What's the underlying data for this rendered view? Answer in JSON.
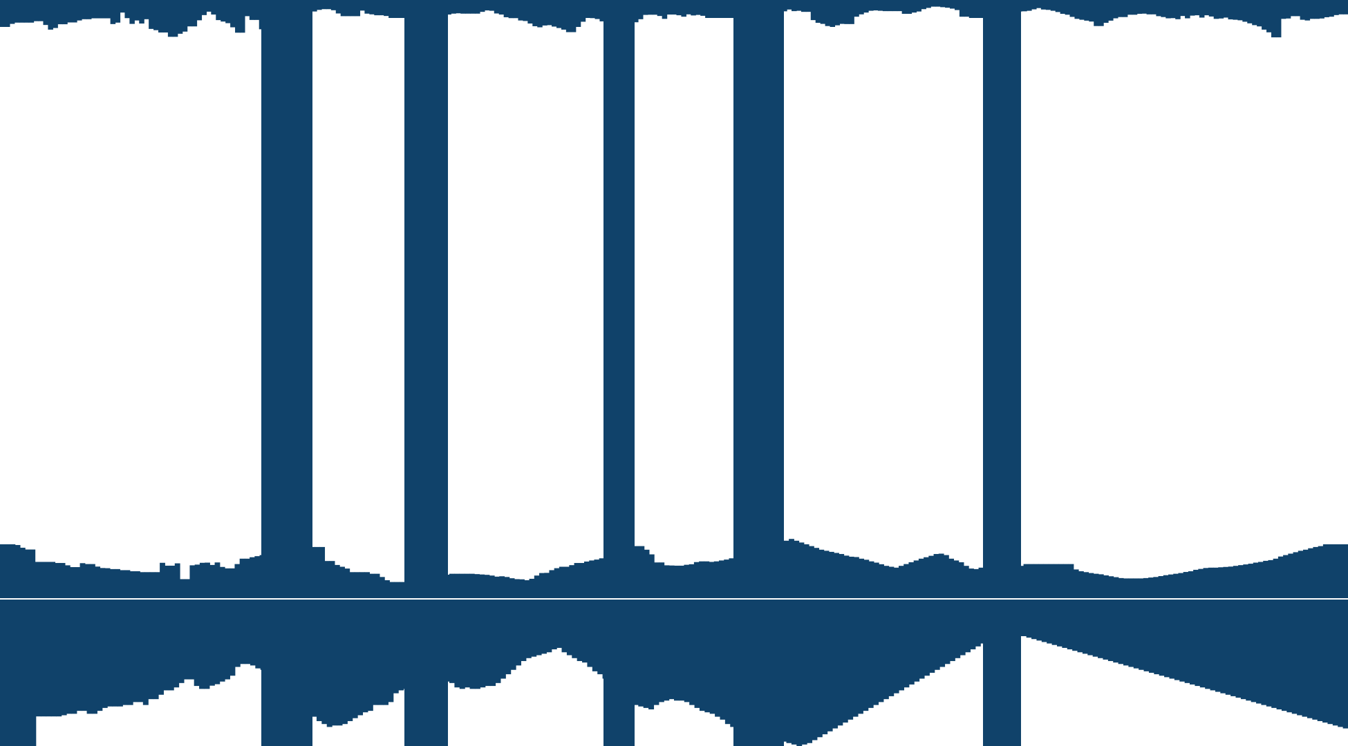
{
  "colors": {
    "fill": "#10426a",
    "background": "#ffffff",
    "divider": "#ffffff"
  },
  "chart_data": {
    "type": "bar",
    "title": "",
    "xlabel": "",
    "ylabel": "",
    "grid": false,
    "legend": "none",
    "panels": [
      {
        "name": "top",
        "orientation": "down",
        "ylim": [
          0,
          1
        ],
        "values": [
          0.15,
          0.15,
          0.133,
          0.126,
          0.126,
          0.126,
          0.126,
          0.118,
          0.118,
          0.139,
          0.165,
          0.156,
          0.135,
          0.135,
          0.125,
          0.125,
          0.114,
          0.107,
          0.107,
          0.102,
          0.102,
          0.102,
          0.102,
          0.134,
          0.126,
          0.07,
          0.101,
          0.133,
          0.114,
          0.131,
          0.107,
          0.161,
          0.168,
          0.181,
          0.181,
          0.205,
          0.205,
          0.188,
          0.176,
          0.147,
          0.147,
          0.113,
          0.084,
          0.065,
          0.081,
          0.112,
          0.12,
          0.129,
          0.152,
          0.182,
          0.182,
          0.09,
          0.111,
          0.111,
          0.163,
          0.081,
          0.081,
          0.078,
          0.076,
          0.076,
          0.076,
          0.09,
          0.09,
          0.076,
          0.07,
          0.064,
          0.055,
          0.051,
          0.051,
          0.057,
          0.075,
          0.09,
          0.09,
          0.09,
          0.09,
          0.059,
          0.076,
          0.08,
          0.085,
          0.085,
          0.089,
          0.1,
          0.1,
          0.1,
          0.1,
          0.1,
          0.1,
          0.1,
          0.1,
          0.1,
          0.1,
          0.088,
          0.085,
          0.081,
          0.076,
          0.074,
          0.076,
          0.076,
          0.076,
          0.076,
          0.066,
          0.058,
          0.06,
          0.075,
          0.081,
          0.096,
          0.101,
          0.101,
          0.114,
          0.117,
          0.131,
          0.146,
          0.152,
          0.142,
          0.14,
          0.148,
          0.156,
          0.165,
          0.179,
          0.179,
          0.15,
          0.121,
          0.1,
          0.101,
          0.106,
          0.119,
          0.124,
          0.124,
          0.124,
          0.124,
          0.124,
          0.124,
          0.124,
          0.107,
          0.083,
          0.082,
          0.082,
          0.089,
          0.105,
          0.081,
          0.081,
          0.085,
          0.093,
          0.08,
          0.086,
          0.083,
          0.088,
          0.1,
          0.1,
          0.1,
          0.1,
          0.1,
          0.1,
          0.1,
          0.1,
          0.1,
          0.1,
          0.1,
          0.1,
          0.1,
          0.1,
          0.1,
          0.1,
          0.063,
          0.053,
          0.062,
          0.06,
          0.066,
          0.066,
          0.112,
          0.127,
          0.133,
          0.145,
          0.15,
          0.141,
          0.133,
          0.134,
          0.134,
          0.093,
          0.08,
          0.07,
          0.06,
          0.058,
          0.06,
          0.062,
          0.062,
          0.062,
          0.062,
          0.077,
          0.077,
          0.07,
          0.064,
          0.051,
          0.044,
          0.037,
          0.037,
          0.04,
          0.043,
          0.048,
          0.056,
          0.093,
          0.093,
          0.1,
          0.1,
          0.1,
          0.1,
          0.1,
          0.1,
          0.1,
          0.1,
          0.1,
          0.1,
          0.064,
          0.063,
          0.06,
          0.052,
          0.045,
          0.053,
          0.055,
          0.06,
          0.067,
          0.077,
          0.082,
          0.094,
          0.105,
          0.11,
          0.115,
          0.12,
          0.145,
          0.145,
          0.127,
          0.115,
          0.102,
          0.095,
          0.095,
          0.082,
          0.082,
          0.077,
          0.076,
          0.08,
          0.08,
          0.09,
          0.095,
          0.102,
          0.101,
          0.107,
          0.089,
          0.102,
          0.087,
          0.085,
          0.098,
          0.085,
          0.092,
          0.105,
          0.103,
          0.098,
          0.108,
          0.11,
          0.113,
          0.121,
          0.13,
          0.14,
          0.147,
          0.165,
          0.18,
          0.208,
          0.208,
          0.105,
          0.103,
          0.09,
          0.09,
          0.11,
          0.114,
          0.105,
          0.105,
          0.103,
          0.096,
          0.093,
          0.084,
          0.08,
          0.08
        ]
      },
      {
        "name": "middle",
        "orientation": "up",
        "ylim": [
          0,
          1
        ],
        "values": [
          0.3,
          0.3,
          0.3,
          0.296,
          0.281,
          0.271,
          0.271,
          0.202,
          0.202,
          0.202,
          0.202,
          0.196,
          0.196,
          0.183,
          0.173,
          0.173,
          0.195,
          0.19,
          0.19,
          0.176,
          0.168,
          0.167,
          0.162,
          0.162,
          0.156,
          0.156,
          0.15,
          0.15,
          0.145,
          0.145,
          0.145,
          0.145,
          0.197,
          0.181,
          0.181,
          0.194,
          0.106,
          0.106,
          0.183,
          0.187,
          0.197,
          0.198,
          0.185,
          0.199,
          0.174,
          0.166,
          0.166,
          0.19,
          0.22,
          0.22,
          0.228,
          0.234,
          0.24,
          0.24,
          0.24,
          0.25,
          0.256,
          0.264,
          0.264,
          0.27,
          0.27,
          0.285,
          0.285,
          0.285,
          0.285,
          0.207,
          0.207,
          0.185,
          0.175,
          0.165,
          0.145,
          0.145,
          0.145,
          0.145,
          0.136,
          0.136,
          0.118,
          0.1,
          0.09,
          0.09,
          0.09,
          0.09,
          0.09,
          0.09,
          0.1,
          0.105,
          0.115,
          0.123,
          0.127,
          0.131,
          0.136,
          0.136,
          0.136,
          0.136,
          0.136,
          0.134,
          0.132,
          0.13,
          0.126,
          0.12,
          0.122,
          0.118,
          0.111,
          0.106,
          0.105,
          0.1,
          0.108,
          0.126,
          0.14,
          0.141,
          0.156,
          0.167,
          0.175,
          0.175,
          0.184,
          0.196,
          0.196,
          0.204,
          0.21,
          0.215,
          0.222,
          0.222,
          0.233,
          0.246,
          0.252,
          0.265,
          0.29,
          0.29,
          0.29,
          0.27,
          0.244,
          0.199,
          0.199,
          0.183,
          0.182,
          0.181,
          0.181,
          0.186,
          0.189,
          0.201,
          0.205,
          0.205,
          0.202,
          0.205,
          0.21,
          0.215,
          0.222,
          0.228,
          0.236,
          0.236,
          0.25,
          0.26,
          0.272,
          0.282,
          0.292,
          0.3,
          0.31,
          0.32,
          0.33,
          0.32,
          0.31,
          0.3,
          0.29,
          0.28,
          0.27,
          0.264,
          0.258,
          0.252,
          0.246,
          0.237,
          0.231,
          0.229,
          0.22,
          0.214,
          0.205,
          0.198,
          0.189,
          0.18,
          0.175,
          0.17,
          0.18,
          0.19,
          0.2,
          0.21,
          0.22,
          0.228,
          0.236,
          0.246,
          0.248,
          0.24,
          0.22,
          0.21,
          0.2,
          0.18,
          0.165,
          0.162,
          0.17,
          0.18,
          0.165,
          0.155,
          0.15,
          0.15,
          0.155,
          0.175,
          0.18,
          0.19,
          0.19,
          0.19,
          0.19,
          0.19,
          0.19,
          0.19,
          0.19,
          0.19,
          0.19,
          0.16,
          0.15,
          0.145,
          0.14,
          0.136,
          0.133,
          0.127,
          0.122,
          0.117,
          0.112,
          0.11,
          0.11,
          0.11,
          0.11,
          0.112,
          0.115,
          0.118,
          0.123,
          0.128,
          0.132,
          0.136,
          0.14,
          0.146,
          0.15,
          0.158,
          0.163,
          0.168,
          0.17,
          0.17,
          0.172,
          0.174,
          0.176,
          0.18,
          0.184,
          0.188,
          0.192,
          0.198,
          0.202,
          0.208,
          0.212,
          0.22,
          0.232,
          0.24,
          0.248,
          0.256,
          0.264,
          0.27,
          0.278,
          0.285,
          0.29,
          0.3,
          0.3,
          0.3,
          0.3,
          0.3
        ]
      },
      {
        "name": "bottom",
        "orientation": "down",
        "ylim": [
          0,
          1
        ],
        "values": [
          1.0,
          1.0,
          1.0,
          1.0,
          1.0,
          1.0,
          1.0,
          0.798,
          0.798,
          0.798,
          0.798,
          0.798,
          0.79,
          0.78,
          0.78,
          0.76,
          0.76,
          0.78,
          0.78,
          0.76,
          0.74,
          0.73,
          0.73,
          0.73,
          0.72,
          0.72,
          0.7,
          0.7,
          0.72,
          0.68,
          0.68,
          0.65,
          0.62,
          0.62,
          0.6,
          0.57,
          0.545,
          0.545,
          0.59,
          0.61,
          0.61,
          0.588,
          0.578,
          0.56,
          0.545,
          0.52,
          0.46,
          0.44,
          0.44,
          0.45,
          0.47,
          0.48,
          0.48,
          0.53,
          0.58,
          0.62,
          0.67,
          0.7,
          0.73,
          0.75,
          0.76,
          0.8,
          0.83,
          0.85,
          0.87,
          0.86,
          0.86,
          0.85,
          0.83,
          0.81,
          0.79,
          0.77,
          0.76,
          0.72,
          0.72,
          0.72,
          0.7,
          0.64,
          0.62,
          0.61,
          0.58,
          0.56,
          0.54,
          0.52,
          0.53,
          0.54,
          0.55,
          0.56,
          0.57,
          0.6,
          0.61,
          0.6,
          0.61,
          0.61,
          0.6,
          0.59,
          0.59,
          0.57,
          0.54,
          0.51,
          0.48,
          0.45,
          0.42,
          0.4,
          0.39,
          0.38,
          0.37,
          0.36,
          0.34,
          0.33,
          0.36,
          0.38,
          0.4,
          0.42,
          0.43,
          0.46,
          0.49,
          0.51,
          0.54,
          0.58,
          0.61,
          0.64,
          0.67,
          0.7,
          0.72,
          0.73,
          0.74,
          0.75,
          0.72,
          0.7,
          0.69,
          0.68,
          0.69,
          0.69,
          0.7,
          0.72,
          0.74,
          0.76,
          0.77,
          0.78,
          0.8,
          0.82,
          0.85,
          0.87,
          0.88,
          0.89,
          0.9,
          0.91,
          0.92,
          0.93,
          0.94,
          0.95,
          0.96,
          0.97,
          0.98,
          0.99,
          1.0,
          0.99,
          0.98,
          0.96,
          0.94,
          0.92,
          0.9,
          0.88,
          0.86,
          0.84,
          0.82,
          0.8,
          0.78,
          0.76,
          0.74,
          0.72,
          0.7,
          0.68,
          0.66,
          0.64,
          0.62,
          0.6,
          0.58,
          0.56,
          0.54,
          0.52,
          0.5,
          0.48,
          0.46,
          0.44,
          0.42,
          0.4,
          0.38,
          0.36,
          0.34,
          0.32,
          0.3,
          0.28,
          0.26,
          0.25,
          0.25,
          0.25,
          0.25,
          0.25,
          0.25,
          0.26,
          0.27,
          0.28,
          0.29,
          0.3,
          0.31,
          0.32,
          0.33,
          0.34,
          0.35,
          0.36,
          0.37,
          0.38,
          0.39,
          0.4,
          0.41,
          0.42,
          0.43,
          0.44,
          0.45,
          0.46,
          0.47,
          0.48,
          0.49,
          0.5,
          0.51,
          0.52,
          0.53,
          0.54,
          0.55,
          0.56,
          0.57,
          0.58,
          0.59,
          0.6,
          0.61,
          0.62,
          0.63,
          0.64,
          0.65,
          0.66,
          0.67,
          0.68,
          0.69,
          0.7,
          0.71,
          0.72,
          0.73,
          0.74,
          0.75,
          0.76,
          0.77,
          0.78,
          0.79,
          0.8,
          0.81,
          0.82,
          0.83,
          0.84,
          0.85,
          0.86,
          0.87,
          0.88
        ]
      }
    ]
  }
}
